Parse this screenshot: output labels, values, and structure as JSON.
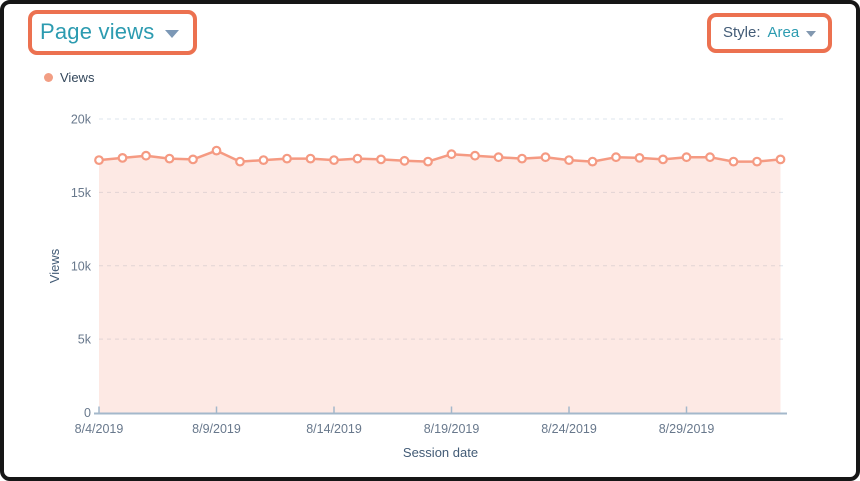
{
  "header": {
    "title": "Page views",
    "style_label": "Style:",
    "style_value": "Area"
  },
  "legend": {
    "label": "Views",
    "swatch_color": "#f29e84"
  },
  "annotation": {
    "highlight_color": "#ec7150"
  },
  "colors": {
    "title_teal": "#2c9bb0",
    "text_slate": "#425b76",
    "tick_label": "#68788c",
    "axis_line": "#a4b8cb",
    "gridline": "#dde4ec",
    "series_line": "#f59a82",
    "series_fill_opacity": 0.22,
    "marker_fill": "#ffffff"
  },
  "chart_data": {
    "type": "area",
    "title": "Page views",
    "series_name": "Views",
    "xlabel": "Session date",
    "ylabel": "Views",
    "x": [
      "8/4/2019",
      "8/5/2019",
      "8/6/2019",
      "8/7/2019",
      "8/8/2019",
      "8/9/2019",
      "8/10/2019",
      "8/11/2019",
      "8/12/2019",
      "8/13/2019",
      "8/14/2019",
      "8/15/2019",
      "8/16/2019",
      "8/17/2019",
      "8/18/2019",
      "8/19/2019",
      "8/20/2019",
      "8/21/2019",
      "8/22/2019",
      "8/23/2019",
      "8/24/2019",
      "8/25/2019",
      "8/26/2019",
      "8/27/2019",
      "8/28/2019",
      "8/29/2019",
      "8/30/2019",
      "8/31/2019",
      "9/1/2019",
      "9/2/2019"
    ],
    "values": [
      17200,
      17350,
      17500,
      17300,
      17250,
      17850,
      17100,
      17200,
      17300,
      17300,
      17200,
      17300,
      17250,
      17150,
      17100,
      17600,
      17500,
      17400,
      17300,
      17400,
      17200,
      17100,
      17400,
      17350,
      17250,
      17400,
      17400,
      17100,
      17100,
      17250
    ],
    "x_tick_labels": [
      "8/4/2019",
      "8/9/2019",
      "8/14/2019",
      "8/19/2019",
      "8/24/2019",
      "8/29/2019"
    ],
    "y_ticks": [
      0,
      5000,
      10000,
      15000,
      20000
    ],
    "y_tick_labels": [
      "0",
      "5k",
      "10k",
      "15k",
      "20k"
    ],
    "ylim": [
      0,
      20000
    ],
    "grid": "horizontal-dashed",
    "legend_position": "top-left",
    "markers": "open-circle"
  }
}
